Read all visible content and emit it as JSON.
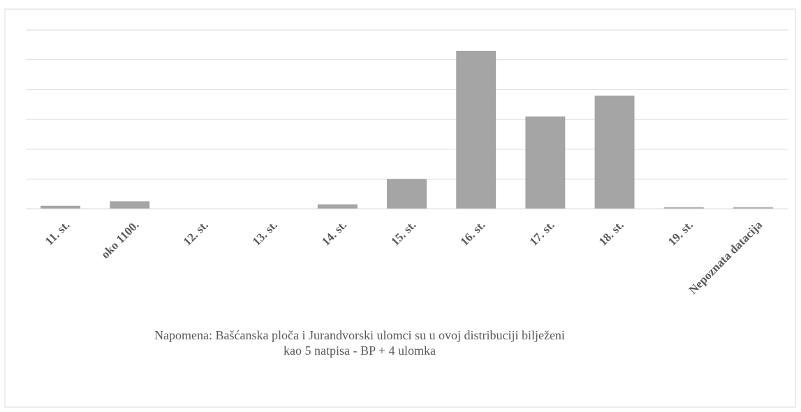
{
  "chart_data": {
    "type": "bar",
    "categories": [
      "11. st.",
      "oko 1100.",
      "12. st.",
      "13. st.",
      "14. st.",
      "15. st.",
      "16. st.",
      "17. st.",
      "18. st.",
      "19. st.",
      "Nepoznata datacija"
    ],
    "values": [
      1,
      2.5,
      0,
      0,
      1.5,
      10,
      53,
      31,
      38,
      0.5,
      0.5
    ],
    "ylim": [
      0,
      60
    ],
    "grid": true,
    "gridlines": [
      0,
      10,
      20,
      30,
      40,
      50,
      60
    ],
    "bar_color": "#a5a5a5",
    "title": "",
    "xlabel": "",
    "ylabel": "",
    "note": [
      "Napomena: Bašćanska ploča i Jurandvorski ulomci su u ovoj distribuciji bilježeni",
      "kao 5 natpisa - BP + 4 ulomka"
    ]
  }
}
